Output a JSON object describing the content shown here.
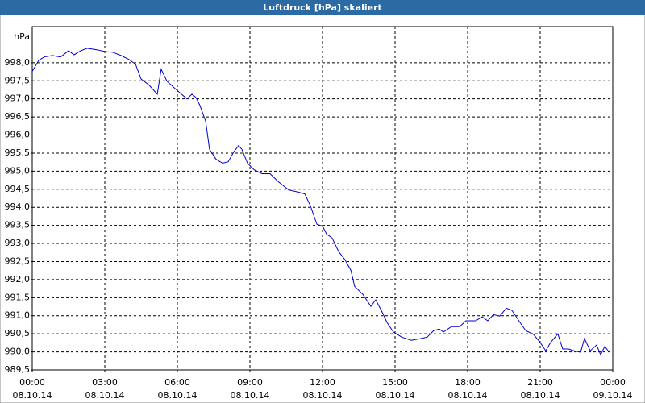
{
  "chart_data": {
    "type": "line",
    "title": "Luftdruck [hPa] skaliert",
    "y_label": "hPa",
    "x": [
      0,
      0.27,
      0.5,
      0.83,
      1.17,
      1.5,
      1.73,
      2.0,
      2.27,
      2.67,
      3.0,
      3.33,
      3.67,
      4.0,
      4.27,
      4.5,
      4.83,
      5.17,
      5.33,
      5.57,
      5.83,
      6.17,
      6.4,
      6.6,
      6.77,
      6.93,
      7.17,
      7.33,
      7.6,
      7.87,
      8.1,
      8.33,
      8.53,
      8.67,
      8.9,
      9.17,
      9.5,
      9.83,
      10.17,
      10.6,
      11.0,
      11.27,
      11.5,
      11.77,
      12.0,
      12.17,
      12.4,
      12.67,
      12.93,
      13.17,
      13.33,
      13.67,
      14.0,
      14.2,
      14.43,
      14.67,
      14.93,
      15.27,
      15.67,
      16.07,
      16.33,
      16.6,
      16.83,
      17.0,
      17.33,
      17.67,
      17.93,
      18.33,
      18.6,
      18.83,
      19.07,
      19.33,
      19.6,
      19.83,
      20.17,
      20.4,
      20.73,
      21.0,
      21.23,
      21.43,
      21.73,
      21.93,
      22.17,
      22.4,
      22.67,
      22.83,
      23.07,
      23.33,
      23.5,
      23.67,
      23.83
    ],
    "series": [
      {
        "name": "Luftdruck",
        "color": "#0000cc",
        "values": [
          997.76,
          998.07,
          998.16,
          998.2,
          998.16,
          998.33,
          998.22,
          998.33,
          998.4,
          998.36,
          998.31,
          998.29,
          998.2,
          998.09,
          997.96,
          997.55,
          997.38,
          997.13,
          997.82,
          997.49,
          997.33,
          997.13,
          997.0,
          997.13,
          997.04,
          996.82,
          996.38,
          995.6,
          995.33,
          995.22,
          995.26,
          995.53,
          995.71,
          995.6,
          995.22,
          995.04,
          994.93,
          994.93,
          994.71,
          994.48,
          994.42,
          994.37,
          994.04,
          993.53,
          993.48,
          993.26,
          993.15,
          992.77,
          992.55,
          992.26,
          991.81,
          991.59,
          991.26,
          991.44,
          991.15,
          990.81,
          990.55,
          990.41,
          990.32,
          990.37,
          990.41,
          990.59,
          990.63,
          990.55,
          990.7,
          990.7,
          990.86,
          990.86,
          990.97,
          990.86,
          991.03,
          990.99,
          991.21,
          991.15,
          990.81,
          990.59,
          990.48,
          990.26,
          990.03,
          990.26,
          990.5,
          990.08,
          990.08,
          990.03,
          989.99,
          990.37,
          990.03,
          990.19,
          989.92,
          990.15,
          990.01
        ]
      }
    ],
    "xlim": [
      0,
      24
    ],
    "xticks": [
      {
        "value": 0,
        "label": [
          "00:00",
          "08.10.14"
        ]
      },
      {
        "value": 3,
        "label": [
          "03:00",
          "08.10.14"
        ]
      },
      {
        "value": 6,
        "label": [
          "06:00",
          "08.10.14"
        ]
      },
      {
        "value": 9,
        "label": [
          "09:00",
          "08.10.14"
        ]
      },
      {
        "value": 12,
        "label": [
          "12:00",
          "08.10.14"
        ]
      },
      {
        "value": 15,
        "label": [
          "15:00",
          "08.10.14"
        ]
      },
      {
        "value": 18,
        "label": [
          "18:00",
          "08.10.14"
        ]
      },
      {
        "value": 21,
        "label": [
          "21:00",
          "08.10.14"
        ]
      },
      {
        "value": 24,
        "label": [
          "00:00",
          "09.10.14"
        ]
      }
    ],
    "ylim": [
      989.5,
      999.0
    ],
    "yticks": [
      {
        "value": 989.5,
        "label": "989,5"
      },
      {
        "value": 990,
        "label": "990,0"
      },
      {
        "value": 990.5,
        "label": "990,5"
      },
      {
        "value": 991,
        "label": "991,0"
      },
      {
        "value": 991.5,
        "label": "991,5"
      },
      {
        "value": 992,
        "label": "992,0"
      },
      {
        "value": 992.5,
        "label": "992,5"
      },
      {
        "value": 993,
        "label": "993,0"
      },
      {
        "value": 993.5,
        "label": "993,5"
      },
      {
        "value": 994,
        "label": "994,0"
      },
      {
        "value": 994.5,
        "label": "994,5"
      },
      {
        "value": 995,
        "label": "995,0"
      },
      {
        "value": 995.5,
        "label": "995,5"
      },
      {
        "value": 996,
        "label": "996,0"
      },
      {
        "value": 996.5,
        "label": "996,5"
      },
      {
        "value": 997,
        "label": "997,0"
      },
      {
        "value": 997.5,
        "label": "997,5"
      },
      {
        "value": 998,
        "label": "998,0"
      }
    ],
    "grid": true
  }
}
